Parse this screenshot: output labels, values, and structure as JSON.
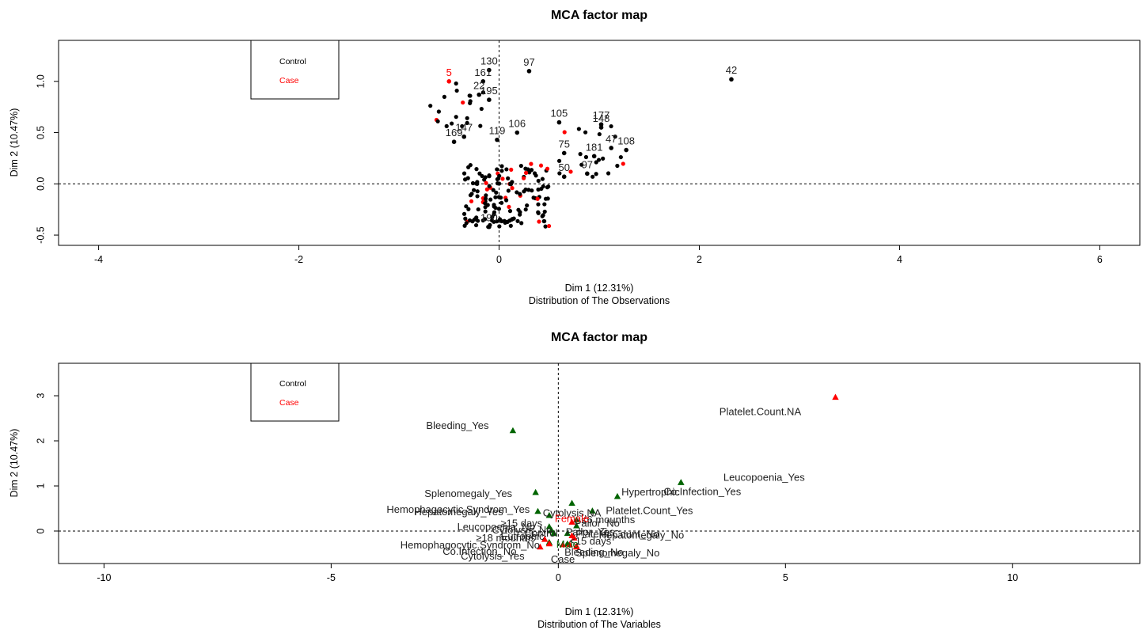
{
  "colors": {
    "control": "#006400",
    "case": "#ff0000",
    "point": "#000000"
  },
  "legend": {
    "items": [
      {
        "label": "Control",
        "color": "#000000"
      },
      {
        "label": "Case",
        "color": "#ff0000"
      }
    ],
    "placement": "top-left"
  },
  "chart_data": [
    {
      "type": "scatter",
      "title": "MCA factor map",
      "xlabel": "Dim 1 (12.31%)",
      "ylabel": "Dim 2 (10.47%)",
      "subtitle": "Distribution of The Observations",
      "xlim": [
        -4.4,
        6.4
      ],
      "ylim": [
        -0.6,
        1.4
      ],
      "xticks": [
        -4,
        -2,
        0,
        2,
        4,
        6
      ],
      "yticks": [
        -0.5,
        0.0,
        0.5,
        1.0
      ],
      "ytick_labels": [
        "-0.5",
        "0.0",
        "0.5",
        "1.0"
      ],
      "grid": false,
      "reference_lines": [
        {
          "axis": "x",
          "value": 0
        },
        {
          "axis": "y",
          "value": 0
        }
      ],
      "labeled_points": [
        {
          "label": "42",
          "x": 2.32,
          "y": 1.02,
          "color": "black"
        },
        {
          "label": "130",
          "x": -0.1,
          "y": 1.11,
          "color": "black"
        },
        {
          "label": "97",
          "x": 0.3,
          "y": 1.1,
          "color": "black"
        },
        {
          "label": "5",
          "x": -0.5,
          "y": 1.0,
          "color": "red"
        },
        {
          "label": "161",
          "x": -0.16,
          "y": 1.0,
          "color": "black"
        },
        {
          "label": "22",
          "x": -0.2,
          "y": 0.87,
          "color": "black"
        },
        {
          "label": "195",
          "x": -0.1,
          "y": 0.82,
          "color": "black"
        },
        {
          "label": "105",
          "x": 0.6,
          "y": 0.6,
          "color": "black"
        },
        {
          "label": "177",
          "x": 1.02,
          "y": 0.58,
          "color": "black"
        },
        {
          "label": "148",
          "x": 1.02,
          "y": 0.55,
          "color": "black"
        },
        {
          "label": "106",
          "x": 0.18,
          "y": 0.5,
          "color": "black"
        },
        {
          "label": "147",
          "x": -0.35,
          "y": 0.46,
          "color": "black"
        },
        {
          "label": "119",
          "x": -0.02,
          "y": 0.43,
          "color": "black"
        },
        {
          "label": "169",
          "x": -0.45,
          "y": 0.41,
          "color": "black"
        },
        {
          "label": "47",
          "x": 1.12,
          "y": 0.35,
          "color": "black"
        },
        {
          "label": "108",
          "x": 1.27,
          "y": 0.33,
          "color": "black"
        },
        {
          "label": "75",
          "x": 0.65,
          "y": 0.3,
          "color": "black"
        },
        {
          "label": "181",
          "x": 0.95,
          "y": 0.27,
          "color": "black"
        },
        {
          "label": "50",
          "x": 0.65,
          "y": 0.07,
          "color": "black"
        },
        {
          "label": "97",
          "x": 0.88,
          "y": 0.1,
          "color": "black"
        },
        {
          "label": "190",
          "x": -0.1,
          "y": -0.42,
          "color": "black"
        }
      ],
      "point_cloud": "approx. 200 observations concentrated in x in [-0.7, 1.3], y in [-0.45, 1.1]"
    },
    {
      "type": "scatter",
      "title": "MCA factor map",
      "xlabel": "Dim 1 (12.31%)",
      "ylabel": "Dim 2 (10.47%)",
      "subtitle": "Distribution of The Variables",
      "xlim": [
        -11.0,
        12.8
      ],
      "ylim": [
        -0.72,
        3.72
      ],
      "xticks": [
        -10,
        -5,
        0,
        5,
        10
      ],
      "yticks": [
        0,
        1,
        2,
        3
      ],
      "ytick_labels": [
        "0",
        "1",
        "2",
        "3"
      ],
      "grid": false,
      "reference_lines": [
        {
          "axis": "x",
          "value": 0
        },
        {
          "axis": "y",
          "value": 0
        }
      ],
      "series": [
        {
          "name": "Control",
          "color": "#006400",
          "marker": "triangle"
        },
        {
          "name": "Case",
          "color": "#ff0000",
          "marker": "triangle"
        }
      ],
      "points": [
        {
          "label": "Platelet.Count.NA",
          "x": 6.1,
          "y": 2.97,
          "series": "Case"
        },
        {
          "label": "Bleeding_Yes",
          "x": -1.0,
          "y": 2.23,
          "series": "Control"
        },
        {
          "label": "Leucopoenia_Yes",
          "x": 2.7,
          "y": 1.08,
          "series": "Control"
        },
        {
          "label": "Co.Infection_Yes",
          "x": 2.7,
          "y": 1.08,
          "series": "Control"
        },
        {
          "label": "Splenomegaly_Yes",
          "x": -0.5,
          "y": 0.86,
          "series": "Control"
        },
        {
          "label": "Cytolysis.NA",
          "x": 0.3,
          "y": 0.62,
          "series": "Control"
        },
        {
          "label": "Hepatomegaly_Yes",
          "x": -0.45,
          "y": 0.44,
          "series": "Control"
        },
        {
          "label": "Hemophagocytic.Syndrom_Yes",
          "x": -0.2,
          "y": 0.35,
          "series": "Control"
        },
        {
          "label": "Hypertrophic",
          "x": 1.3,
          "y": 0.77,
          "series": "Control"
        },
        {
          "label": "Platelet.Count_Yes",
          "x": 0.75,
          "y": 0.45,
          "series": "Control"
        },
        {
          "label": "Pallor_No",
          "x": 0.4,
          "y": 0.25,
          "series": "Control"
        },
        {
          "label": "≥15 days",
          "x": -0.2,
          "y": 0.1,
          "series": "Control"
        },
        {
          "label": "≤6 mounths",
          "x": 0.4,
          "y": 0.12,
          "series": "Control"
        },
        {
          "label": "Platelet.Count_No",
          "x": 0.2,
          "y": -0.05,
          "series": "Control"
        },
        {
          "label": "Female",
          "x": 0.3,
          "y": 0.2,
          "series": "Case"
        },
        {
          "label": "Leucopoenia_No",
          "x": -0.15,
          "y": 0.02,
          "series": "Control"
        },
        {
          "label": "Cytolysis_No",
          "x": -0.1,
          "y": -0.05,
          "series": "Control"
        },
        {
          "label": "Control",
          "x": -0.1,
          "y": -0.05,
          "series": "Control"
        },
        {
          "label": "Pallor_Yes",
          "x": 0.3,
          "y": -0.1,
          "series": "Case"
        },
        {
          "label": "Hepatomegaly_No",
          "x": 0.35,
          "y": -0.15,
          "series": "Case"
        },
        {
          "label": "Eutrophic",
          "x": -0.3,
          "y": -0.18,
          "series": "Case"
        },
        {
          "label": "Male",
          "x": 0.2,
          "y": -0.28,
          "series": "Control"
        },
        {
          "label": "<15 days",
          "x": 0.25,
          "y": -0.3,
          "series": "Case"
        },
        {
          "label": "≥18 mounths",
          "x": -0.2,
          "y": -0.25,
          "series": "Control"
        },
        {
          "label": "Hemophagocytic.Syndrom_No",
          "x": -0.2,
          "y": -0.25,
          "series": "Control"
        },
        {
          "label": "Co.Infection_No",
          "x": -0.2,
          "y": -0.28,
          "series": "Case"
        },
        {
          "label": "Cytolysis_Yes",
          "x": -0.4,
          "y": -0.35,
          "series": "Case"
        },
        {
          "label": "Case",
          "x": 0.1,
          "y": -0.3,
          "series": "Case"
        },
        {
          "label": "Bleeding_No",
          "x": 0.4,
          "y": -0.33,
          "series": "Case"
        },
        {
          "label": "Splenomegaly_No",
          "x": 0.4,
          "y": -0.35,
          "series": "Case"
        }
      ]
    }
  ]
}
